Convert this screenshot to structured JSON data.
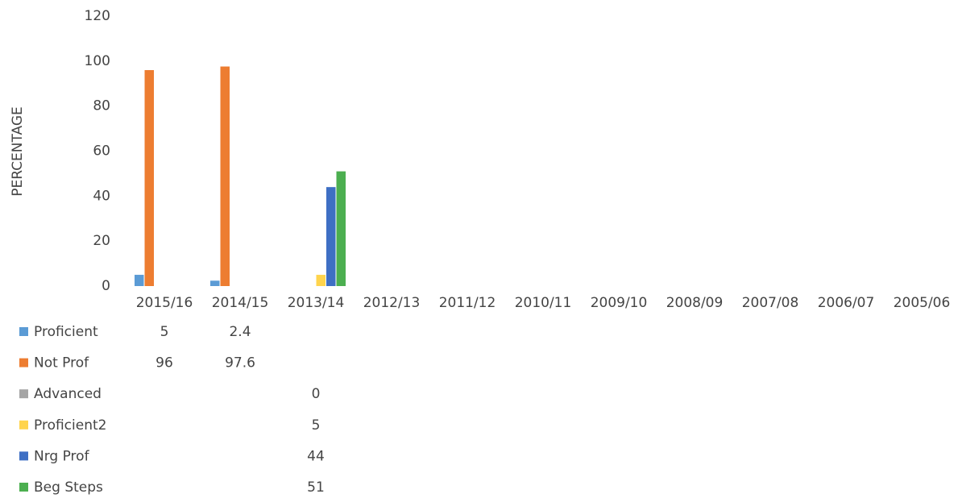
{
  "chart_data": {
    "type": "bar",
    "y_label": "PERCENTAGE",
    "categories": [
      "2015/16",
      "2014/15",
      "2013/14",
      "2012/13",
      "2011/12",
      "2010/11",
      "2009/10",
      "2008/09",
      "2007/08",
      "2006/07",
      "2005/06"
    ],
    "series": [
      {
        "name": "Proficient",
        "color": "#5b9bd5",
        "values": [
          5,
          2.4,
          null,
          null,
          null,
          null,
          null,
          null,
          null,
          null,
          null
        ]
      },
      {
        "name": "Not Prof",
        "color": "#ed7d31",
        "values": [
          96,
          97.6,
          null,
          null,
          null,
          null,
          null,
          null,
          null,
          null,
          null
        ]
      },
      {
        "name": "Advanced",
        "color": "#a5a5a5",
        "values": [
          null,
          null,
          0,
          null,
          null,
          null,
          null,
          null,
          null,
          null,
          null
        ]
      },
      {
        "name": "Proficient2",
        "color": "#ffd44d",
        "values": [
          null,
          null,
          5,
          null,
          null,
          null,
          null,
          null,
          null,
          null,
          null
        ]
      },
      {
        "name": "Nrg Prof",
        "color": "#3e6fc4",
        "values": [
          null,
          null,
          44,
          null,
          null,
          null,
          null,
          null,
          null,
          null,
          null
        ]
      },
      {
        "name": "Beg Steps",
        "color": "#4caf50",
        "values": [
          null,
          null,
          51,
          null,
          null,
          null,
          null,
          null,
          null,
          null,
          null
        ]
      }
    ],
    "ylim": [
      0,
      120
    ],
    "yticks": [
      0,
      20,
      40,
      60,
      80,
      100,
      120
    ],
    "grid": false
  }
}
